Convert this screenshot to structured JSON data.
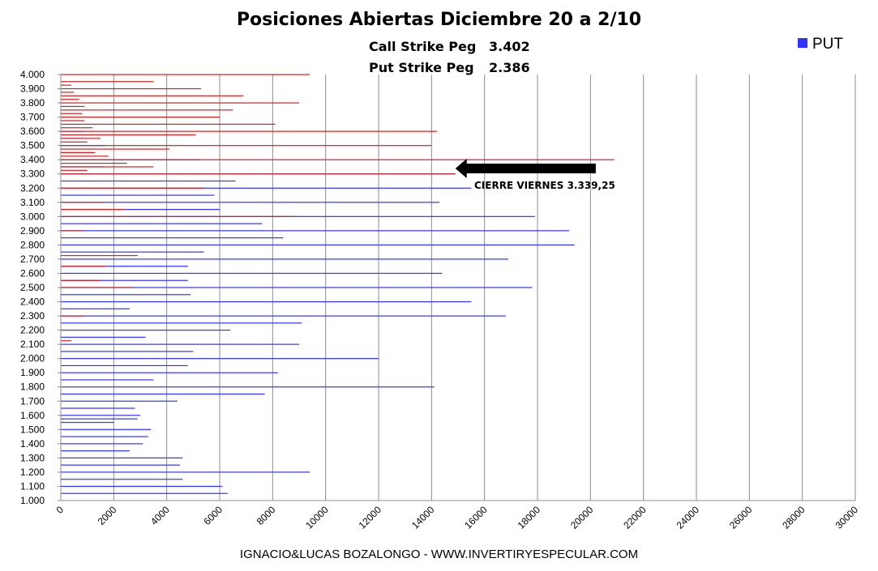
{
  "chart_data": {
    "type": "bar",
    "orientation": "horizontal",
    "title": "Posiciones Abiertas Diciembre 20 a 2/10",
    "subtitle_lines": [
      {
        "label": "Call Strike Peg",
        "value": "3.402"
      },
      {
        "label": "Put Strike Peg",
        "value": "2.386"
      }
    ],
    "legend": [
      {
        "name": "PUT",
        "color": "#3333ff",
        "position": "top-right"
      }
    ],
    "xlim": [
      0,
      30000
    ],
    "x_ticks": [
      "0",
      "2000",
      "4000",
      "6000",
      "8000",
      "10000",
      "12000",
      "14000",
      "16000",
      "18000",
      "20000",
      "22000",
      "24000",
      "26000",
      "28000",
      "30000"
    ],
    "ylim": [
      1000,
      4000
    ],
    "y_ticks": [
      "1.000",
      "1.100",
      "1.200",
      "1.300",
      "1.400",
      "1.500",
      "1.600",
      "1.700",
      "1.800",
      "1.900",
      "2.000",
      "2.100",
      "2.200",
      "2.300",
      "2.400",
      "2.500",
      "2.600",
      "2.700",
      "2.800",
      "2.900",
      "3.000",
      "3.100",
      "3.200",
      "3.300",
      "3.400",
      "3.500",
      "3.600",
      "3.700",
      "3.800",
      "3.900",
      "4.000"
    ],
    "grid": "vertical",
    "series": [
      {
        "name": "PUT",
        "color": "#3333ff",
        "points": [
          {
            "strike": 1050,
            "value": 6300
          },
          {
            "strike": 1100,
            "value": 6100
          },
          {
            "strike": 1150,
            "value": 4600
          },
          {
            "strike": 1200,
            "value": 9400
          },
          {
            "strike": 1250,
            "value": 4500
          },
          {
            "strike": 1300,
            "value": 4600
          },
          {
            "strike": 1350,
            "value": 2600
          },
          {
            "strike": 1400,
            "value": 3100
          },
          {
            "strike": 1450,
            "value": 3300
          },
          {
            "strike": 1500,
            "value": 3400
          },
          {
            "strike": 1550,
            "value": 2000
          },
          {
            "strike": 1575,
            "value": 2900
          },
          {
            "strike": 1600,
            "value": 3000
          },
          {
            "strike": 1650,
            "value": 2800
          },
          {
            "strike": 1700,
            "value": 4400
          },
          {
            "strike": 1750,
            "value": 7700
          },
          {
            "strike": 1800,
            "value": 14100
          },
          {
            "strike": 1850,
            "value": 3500
          },
          {
            "strike": 1900,
            "value": 8200
          },
          {
            "strike": 1950,
            "value": 4800
          },
          {
            "strike": 2000,
            "value": 12000
          },
          {
            "strike": 2050,
            "value": 5000
          },
          {
            "strike": 2100,
            "value": 9000
          },
          {
            "strike": 2150,
            "value": 3200
          },
          {
            "strike": 2200,
            "value": 6400
          },
          {
            "strike": 2250,
            "value": 9100
          },
          {
            "strike": 2300,
            "value": 16800
          },
          {
            "strike": 2350,
            "value": 2600
          },
          {
            "strike": 2400,
            "value": 15500
          },
          {
            "strike": 2450,
            "value": 4900
          },
          {
            "strike": 2500,
            "value": 17800
          },
          {
            "strike": 2550,
            "value": 4800
          },
          {
            "strike": 2600,
            "value": 14400
          },
          {
            "strike": 2650,
            "value": 4800
          },
          {
            "strike": 2700,
            "value": 16900
          },
          {
            "strike": 2750,
            "value": 5400
          },
          {
            "strike": 2800,
            "value": 19400
          },
          {
            "strike": 2850,
            "value": 8400
          },
          {
            "strike": 2900,
            "value": 19200
          },
          {
            "strike": 2950,
            "value": 7600
          },
          {
            "strike": 3000,
            "value": 17900
          },
          {
            "strike": 3050,
            "value": 6000
          },
          {
            "strike": 3100,
            "value": 14300
          },
          {
            "strike": 3150,
            "value": 5800
          },
          {
            "strike": 3200,
            "value": 15500
          },
          {
            "strike": 3250,
            "value": 6600
          },
          {
            "strike": 3300,
            "value": 14900
          },
          {
            "strike": 3350,
            "value": 1600
          },
          {
            "strike": 3400,
            "value": 5300
          },
          {
            "strike": 3450,
            "value": 1200
          },
          {
            "strike": 3500,
            "value": 1700
          },
          {
            "strike": 3550,
            "value": 800
          },
          {
            "strike": 3600,
            "value": 900
          }
        ]
      },
      {
        "color": "#cc2222",
        "points": [
          {
            "strike": 2125,
            "value": 400
          },
          {
            "strike": 2300,
            "value": 900
          },
          {
            "strike": 2500,
            "value": 2700
          },
          {
            "strike": 2550,
            "value": 1500
          },
          {
            "strike": 2650,
            "value": 1700
          },
          {
            "strike": 2725,
            "value": 2900
          },
          {
            "strike": 2900,
            "value": 800
          },
          {
            "strike": 3000,
            "value": 8800
          },
          {
            "strike": 3050,
            "value": 2400
          },
          {
            "strike": 3100,
            "value": 1600
          },
          {
            "strike": 3200,
            "value": 5400
          },
          {
            "strike": 3300,
            "value": 14900
          },
          {
            "strike": 3325,
            "value": 1000
          },
          {
            "strike": 3350,
            "value": 3500
          },
          {
            "strike": 3375,
            "value": 2500
          },
          {
            "strike": 3400,
            "value": 20900
          },
          {
            "strike": 3425,
            "value": 1800
          },
          {
            "strike": 3450,
            "value": 1300
          },
          {
            "strike": 3475,
            "value": 4100
          },
          {
            "strike": 3500,
            "value": 14000
          },
          {
            "strike": 3525,
            "value": 1000
          },
          {
            "strike": 3550,
            "value": 1500
          },
          {
            "strike": 3575,
            "value": 5100
          },
          {
            "strike": 3600,
            "value": 14200
          },
          {
            "strike": 3625,
            "value": 1200
          },
          {
            "strike": 3650,
            "value": 8100
          },
          {
            "strike": 3675,
            "value": 900
          },
          {
            "strike": 3700,
            "value": 6000
          },
          {
            "strike": 3725,
            "value": 800
          },
          {
            "strike": 3750,
            "value": 6500
          },
          {
            "strike": 3775,
            "value": 900
          },
          {
            "strike": 3800,
            "value": 9000
          },
          {
            "strike": 3825,
            "value": 700
          },
          {
            "strike": 3850,
            "value": 6900
          },
          {
            "strike": 3875,
            "value": 500
          },
          {
            "strike": 3900,
            "value": 5300
          },
          {
            "strike": 3925,
            "value": 400
          },
          {
            "strike": 3950,
            "value": 3500
          },
          {
            "strike": 4000,
            "value": 9400
          }
        ]
      }
    ],
    "annotation": {
      "text": "CIERRE VIERNES 3.339,25",
      "arrow_from": 20200,
      "arrow_to": 14900,
      "strike": 3339.25
    }
  },
  "footer": "IGNACIO&LUCAS BOZALONGO - WWW.INVERTIRYESPECULAR.COM"
}
